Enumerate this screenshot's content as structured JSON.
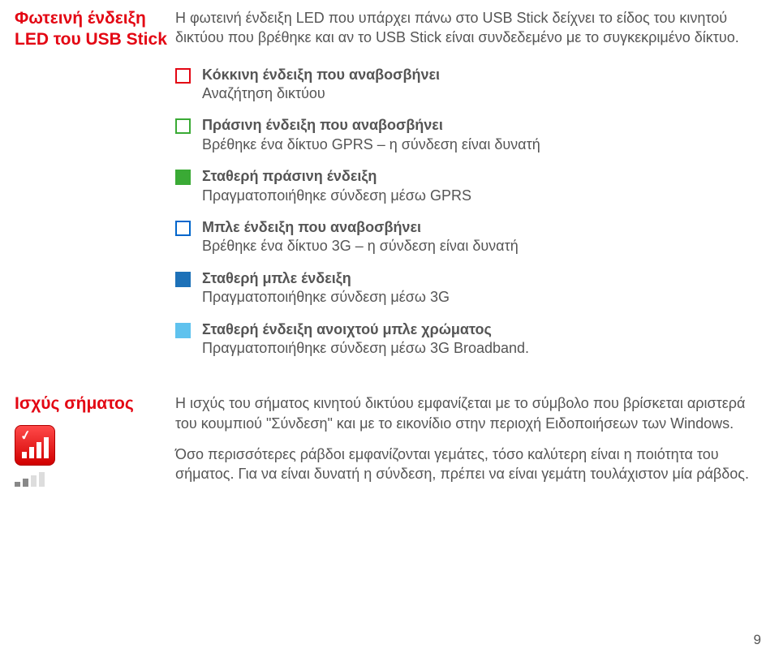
{
  "section1": {
    "heading_line1": "Φωτεινή ένδειξη",
    "heading_line2": "LED του USB Stick",
    "intro": "Η φωτεινή ένδειξη LED που υπάρχει πάνω στο USB Stick δείχνει το είδος του κινητού δικτύου που βρέθηκε και αν το USB Stick είναι συνδεδεμένο με το συγκεκριμένο δίκτυο.",
    "items": [
      {
        "title": "Κόκκινη ένδειξη που αναβοσβήνει",
        "sub": "Αναζήτηση δικτύου",
        "box_class": "led-outline-red"
      },
      {
        "title": "Πράσινη ένδειξη που αναβοσβήνει",
        "sub": "Βρέθηκε ένα δίκτυο GPRS – η σύνδεση είναι δυνατή",
        "box_class": "led-outline-green"
      },
      {
        "title": "Σταθερή πράσινη ένδειξη",
        "sub": "Πραγματοποιήθηκε σύνδεση μέσω GPRS",
        "box_class": "led-solid-green"
      },
      {
        "title": "Μπλε ένδειξη που αναβοσβήνει",
        "sub": "Βρέθηκε ένα δίκτυο 3G – η σύνδεση είναι δυνατή",
        "box_class": "led-outline-blue"
      },
      {
        "title": "Σταθερή μπλε ένδειξη",
        "sub": "Πραγματοποιήθηκε σύνδεση μέσω 3G",
        "box_class": "led-solid-blue"
      },
      {
        "title": "Σταθερή ένδειξη ανοιχτού μπλε χρώματος",
        "sub": "Πραγματοποιήθηκε σύνδεση μέσω 3G Broadband.",
        "box_class": "led-solid-lightblue"
      }
    ]
  },
  "section2": {
    "heading": "Ισχύς σήματος",
    "para1": "Η ισχύς του σήματος κινητού δικτύου εμφανίζεται με το σύμβολο που βρίσκεται αριστερά του κουμπιού \"Σύνδεση\" και με το εικονίδιο στην περιοχή Ειδοποιήσεων των Windows.",
    "para2": "Όσο περισσότερες ράβδοι εμφανίζονται γεμάτες, τόσο καλύτερη είναι η ποιότητα του σήματος. Για να είναι δυνατή η σύνδεση, πρέπει να είναι γεμάτη τουλάχιστον μία ράβδος."
  },
  "page_number": "9",
  "colors": {
    "heading_red": "#e30613",
    "text": "#555555",
    "green": "#3aaa35",
    "blue": "#1d71b8",
    "lightblue": "#5fc2ee"
  }
}
